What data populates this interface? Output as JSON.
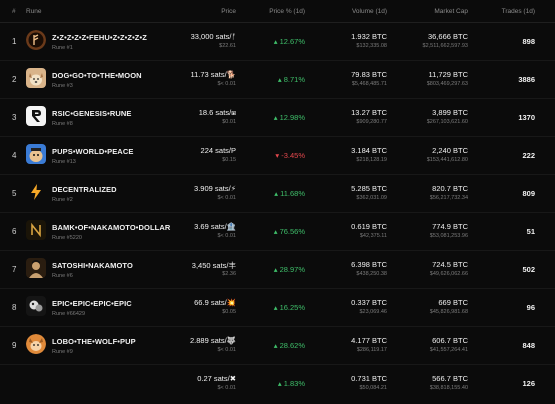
{
  "header": {
    "num": "#",
    "rune": "Rune",
    "price": "Price",
    "price_pct": "Price % (1d)",
    "volume": "Volume (1d)",
    "market_cap": "Market Cap",
    "trades": "Trades (1d)"
  },
  "colors": {
    "up": "#3fbf6a",
    "down": "#e5484d"
  },
  "rows": [
    {
      "num": "1",
      "icon": "fehu-rune-icon",
      "name": "Z•Z•Z•Z•Z•FEHU•Z•Z•Z•Z•Z",
      "sub": "Rune #1",
      "price": "33,000 sats/ᚠ",
      "price_usd": "$22.61",
      "pct": "12.67%",
      "dir": "up",
      "volume": "1.932 BTC",
      "volume_usd": "$132,335.08",
      "mcap": "36,666 BTC",
      "mcap_usd": "$2,511,662,597.93",
      "trades": "898"
    },
    {
      "num": "2",
      "icon": "dog-icon",
      "name": "DOG•GO•TO•THE•MOON",
      "sub": "Rune #3",
      "price": "11.73 sats/🐕",
      "price_usd": "$< 0.01",
      "pct": "8.71%",
      "dir": "up",
      "volume": "79.83 BTC",
      "volume_usd": "$5,468,485.71",
      "mcap": "11,729 BTC",
      "mcap_usd": "$803,469,297.63",
      "trades": "3886"
    },
    {
      "num": "3",
      "icon": "rsic-icon",
      "name": "RSIC•GENESIS•RUNE",
      "sub": "Rune #8",
      "price": "18.6 sats/⧆",
      "price_usd": "$0.01",
      "pct": "12.98%",
      "dir": "up",
      "volume": "13.27 BTC",
      "volume_usd": "$909,280.77",
      "mcap": "3,899 BTC",
      "mcap_usd": "$267,103,621.60",
      "trades": "1370"
    },
    {
      "num": "4",
      "icon": "pups-icon",
      "name": "PUPS•WORLD•PEACE",
      "sub": "Rune #13",
      "price": "224 sats/P",
      "price_usd": "$0.15",
      "pct": "-3.45%",
      "dir": "down",
      "volume": "3.184 BTC",
      "volume_usd": "$218,128.19",
      "mcap": "2,240 BTC",
      "mcap_usd": "$153,441,612.80",
      "trades": "222"
    },
    {
      "num": "5",
      "icon": "lightning-icon",
      "name": "DECENTRALIZED",
      "sub": "Rune #2",
      "price": "3.909 sats/⚡",
      "price_usd": "$< 0.01",
      "pct": "11.68%",
      "dir": "up",
      "volume": "5.285 BTC",
      "volume_usd": "$362,031.09",
      "mcap": "820.7 BTC",
      "mcap_usd": "$56,217,732.34",
      "trades": "809"
    },
    {
      "num": "6",
      "icon": "bamk-icon",
      "name": "BAMK•OF•NAKAMOTO•DOLLAR",
      "sub": "Rune #5220",
      "price": "3.69 sats/🏦",
      "price_usd": "$< 0.01",
      "pct": "76.56%",
      "dir": "up",
      "volume": "0.619 BTC",
      "volume_usd": "$42,375.11",
      "mcap": "774.9 BTC",
      "mcap_usd": "$53,081,253.96",
      "trades": "51"
    },
    {
      "num": "7",
      "icon": "satoshi-icon",
      "name": "SATOSHI•NAKAMOTO",
      "sub": "Rune #6",
      "price": "3,450 sats/丰",
      "price_usd": "$2.36",
      "pct": "28.97%",
      "dir": "up",
      "volume": "6.398 BTC",
      "volume_usd": "$438,250.38",
      "mcap": "724.5 BTC",
      "mcap_usd": "$49,626,062.66",
      "trades": "502"
    },
    {
      "num": "8",
      "icon": "epic-icon",
      "name": "EPIC•EPIC•EPIC•EPIC",
      "sub": "Rune #66429",
      "price": "66.9 sats/💥",
      "price_usd": "$0.05",
      "pct": "16.25%",
      "dir": "up",
      "volume": "0.337 BTC",
      "volume_usd": "$23,069.46",
      "mcap": "669 BTC",
      "mcap_usd": "$45,826,981.68",
      "trades": "96"
    },
    {
      "num": "9",
      "icon": "lobo-icon",
      "name": "LOBO•THE•WOLF•PUP",
      "sub": "Rune #9",
      "price": "2.889 sats/🐺",
      "price_usd": "$< 0.01",
      "pct": "28.62%",
      "dir": "up",
      "volume": "4.177 BTC",
      "volume_usd": "$286,119.17",
      "mcap": "606.7 BTC",
      "mcap_usd": "$41,557,264.41",
      "trades": "848"
    },
    {
      "num": "",
      "icon": "",
      "name": "",
      "sub": "",
      "price": "0.27 sats/✖",
      "price_usd": "$< 0.01",
      "pct": "1.83%",
      "dir": "up",
      "volume": "0.731 BTC",
      "volume_usd": "$50,084.21",
      "mcap": "566.7 BTC",
      "mcap_usd": "$38,818,155.40",
      "trades": "126"
    }
  ]
}
